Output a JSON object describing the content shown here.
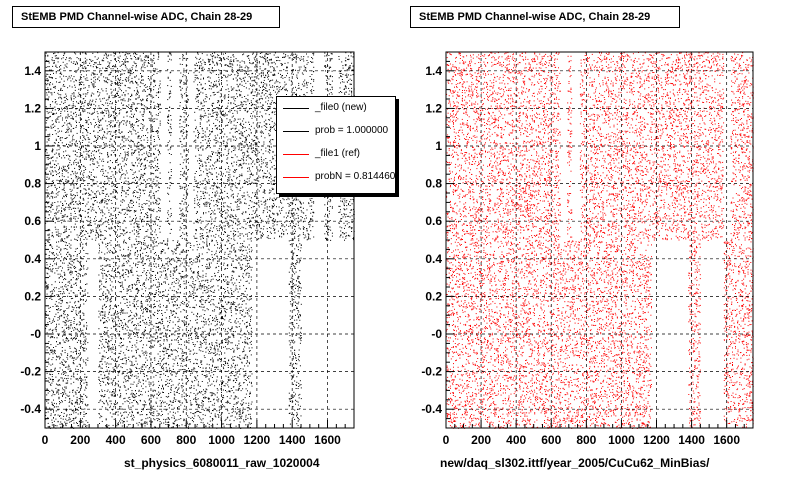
{
  "chart_data": [
    {
      "type": "scatter",
      "title": "StEMB PMD Channel-wise ADC, Chain 28-29",
      "xlabel": "st_physics_6080011_raw_1020004",
      "ylabel": "",
      "xlim": [
        0,
        1750
      ],
      "ylim": [
        -0.5,
        1.5
      ],
      "x_ticks": [
        "0",
        "200",
        "400",
        "600",
        "800",
        "1000",
        "1200",
        "1400",
        "1600"
      ],
      "y_ticks": [
        "-0.4",
        "-0.2",
        "-0",
        "0.2",
        "0.4",
        "0.6",
        "0.8",
        "1",
        "1.2",
        "1.4"
      ],
      "grid": true,
      "color": "#000000",
      "bands": [
        [
          -0.5,
          0.5
        ],
        [
          0.5,
          1.5
        ]
      ],
      "gaps_low": [
        [
          240,
          300
        ],
        [
          1170,
          1380
        ],
        [
          1450,
          1750
        ]
      ],
      "gaps_high": [
        [
          650,
          690
        ],
        [
          715,
          760
        ],
        [
          810,
          840
        ],
        [
          1520,
          1580
        ],
        [
          1625,
          1660
        ]
      ],
      "legend": {
        "placement": "top-right",
        "entries": [
          {
            "label": "_file0 (new)",
            "color": "#000000"
          },
          {
            "label": "prob = 1.000000",
            "color": "#000000"
          },
          {
            "label": "_file1 (ref)",
            "color": "#ff0000"
          },
          {
            "label": "probN = 0.814460",
            "color": "#ff0000"
          }
        ]
      }
    },
    {
      "type": "scatter",
      "title": "StEMB PMD Channel-wise ADC, Chain 28-29",
      "xlabel": "new/daq_sl302.ittf/year_2005/CuCu62_MinBias/",
      "ylabel": "",
      "xlim": [
        0,
        1750
      ],
      "ylim": [
        -0.5,
        1.5
      ],
      "x_ticks": [
        "0",
        "200",
        "400",
        "600",
        "800",
        "1000",
        "1200",
        "1400",
        "1600"
      ],
      "y_ticks": [
        "-0.4",
        "-0.2",
        "-0",
        "0.2",
        "0.4",
        "0.6",
        "0.8",
        "1",
        "1.2",
        "1.4"
      ],
      "grid": true,
      "color": "#ff0000",
      "bands": [
        [
          -0.5,
          0.5
        ],
        [
          0.5,
          1.5
        ]
      ],
      "gaps_low": [
        [
          1170,
          1380
        ],
        [
          1450,
          1580
        ]
      ],
      "gaps_high": [
        [
          650,
          690
        ],
        [
          715,
          760
        ],
        [
          1580,
          1620
        ]
      ]
    }
  ]
}
